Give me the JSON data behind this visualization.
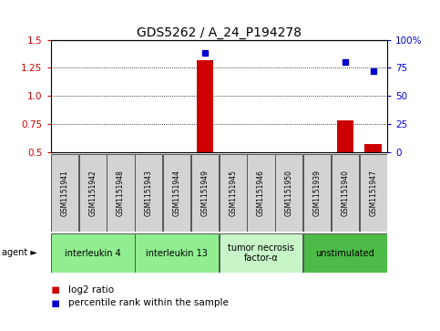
{
  "title": "GDS5262 / A_24_P194278",
  "samples": [
    "GSM1151941",
    "GSM1151942",
    "GSM1151948",
    "GSM1151943",
    "GSM1151944",
    "GSM1151949",
    "GSM1151945",
    "GSM1151946",
    "GSM1151950",
    "GSM1151939",
    "GSM1151940",
    "GSM1151947"
  ],
  "log2_ratio": [
    null,
    null,
    null,
    null,
    null,
    1.32,
    null,
    null,
    null,
    null,
    0.78,
    0.57
  ],
  "percentile_rank": [
    null,
    null,
    null,
    null,
    null,
    88,
    null,
    null,
    null,
    null,
    80,
    72
  ],
  "ylim_left": [
    0.5,
    1.5
  ],
  "ylim_right": [
    0,
    100
  ],
  "yticks_left": [
    0.5,
    0.75,
    1.0,
    1.25,
    1.5
  ],
  "yticks_right": [
    0,
    25,
    50,
    75,
    100
  ],
  "ytick_labels_right": [
    "0",
    "25",
    "50",
    "75",
    "100%"
  ],
  "hlines": [
    0.75,
    1.0,
    1.25
  ],
  "agents": [
    {
      "label": "interleukin 4",
      "start": 0,
      "end": 2,
      "color": "#90EE90"
    },
    {
      "label": "interleukin 13",
      "start": 3,
      "end": 5,
      "color": "#90EE90"
    },
    {
      "label": "tumor necrosis\nfactor-α",
      "start": 6,
      "end": 8,
      "color": "#c8f5c8"
    },
    {
      "label": "unstimulated",
      "start": 9,
      "end": 11,
      "color": "#4CBB47"
    }
  ],
  "legend_items": [
    {
      "color": "#cc0000",
      "label": "log2 ratio"
    },
    {
      "color": "#0000cc",
      "label": "percentile rank within the sample"
    }
  ],
  "bar_color": "#cc0000",
  "dot_color": "#0000cc",
  "sample_box_color": "#d3d3d3",
  "agent_label": "agent ►",
  "left_axis_color": "#cc0000",
  "right_axis_color": "#0000cc",
  "title_fontsize": 10,
  "tick_fontsize": 7.5,
  "sample_fontsize": 5.5,
  "agent_fontsize": 7,
  "legend_fontsize": 7.5
}
